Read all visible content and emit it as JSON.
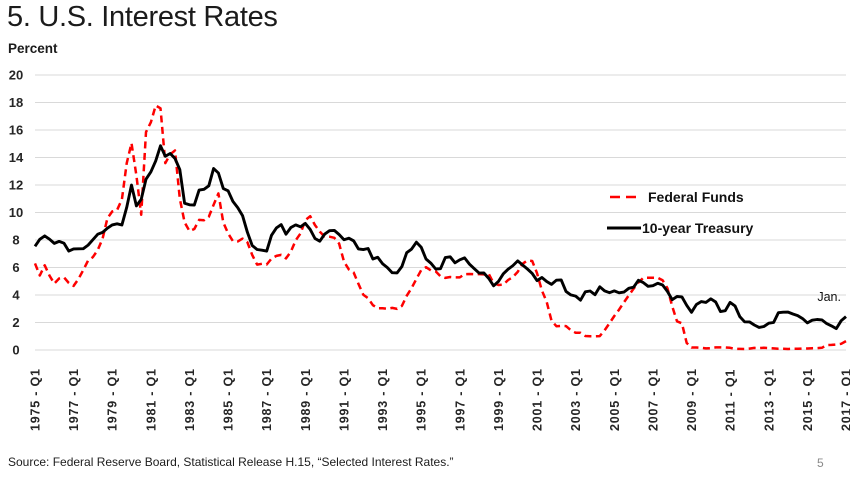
{
  "title": "5. U.S. Interest Rates",
  "y_axis_units": "Percent",
  "source": "Source: Federal Reserve Board, Statistical Release H.15, “Selected Interest Rates.”",
  "page_number": "5",
  "colors": {
    "federal_funds": "#fe0000",
    "treasury": "#000000",
    "gridline": "#d9d9d9",
    "text": "#262626",
    "page_number": "#8a8a8a"
  },
  "chart_data": {
    "type": "line",
    "title": "5. U.S. Interest Rates",
    "ylabel": "Percent",
    "xlabel": "",
    "ylim": [
      0,
      20
    ],
    "ytick_step": 2,
    "grid": "horizontal",
    "legend_position": "middle-right",
    "x_frequency": "quarterly",
    "x_start": "1975 - Q1",
    "x_end": "2017 - Q1",
    "x_tick_every": 8,
    "x_tick_labels": [
      "1975 - Q1",
      "1977 - Q1",
      "1979 - Q1",
      "1981 - Q1",
      "1983 - Q1",
      "1985 - Q1",
      "1987 - Q1",
      "1989 - Q1",
      "1991 - Q1",
      "1993 - Q1",
      "1995 - Q1",
      "1997 - Q1",
      "1999 - Q1",
      "2001 - Q1",
      "2003 - Q1",
      "2005 - Q1",
      "2007 - Q1",
      "2009 - Q1",
      "2011 - Q1",
      "2013 - Q1",
      "2015 - Q1",
      "2017 - Q1"
    ],
    "annotation": {
      "text": "Jan.",
      "x": "2017 - Q1"
    },
    "series": [
      {
        "name": "Federal Funds",
        "color": "#fe0000",
        "dash": true,
        "values": [
          6.3,
          5.42,
          6.16,
          5.41,
          4.83,
          5.2,
          5.28,
          4.87,
          4.66,
          5.16,
          5.82,
          6.51,
          6.76,
          7.28,
          8.1,
          9.58,
          10.07,
          10.18,
          10.95,
          13.58,
          15.05,
          12.69,
          9.84,
          15.85,
          16.57,
          17.78,
          17.58,
          13.59,
          14.23,
          14.51,
          11.01,
          9.29,
          8.65,
          8.8,
          9.46,
          9.43,
          9.69,
          10.56,
          11.39,
          9.27,
          8.48,
          7.92,
          7.9,
          8.1,
          7.83,
          6.92,
          6.21,
          6.27,
          6.22,
          6.65,
          6.84,
          6.92,
          6.66,
          7.16,
          7.98,
          8.47,
          9.44,
          9.73,
          9.08,
          8.61,
          8.25,
          8.24,
          8.16,
          7.74,
          6.43,
          5.86,
          5.64,
          4.82,
          4.02,
          3.77,
          3.26,
          3.04,
          3.04,
          3.0,
          3.06,
          2.99,
          3.21,
          3.94,
          4.49,
          5.17,
          5.81,
          6.02,
          5.8,
          5.72,
          5.36,
          5.24,
          5.31,
          5.28,
          5.28,
          5.52,
          5.53,
          5.51,
          5.52,
          5.5,
          5.53,
          4.86,
          4.73,
          4.75,
          5.09,
          5.31,
          5.68,
          6.27,
          6.52,
          6.47,
          5.59,
          4.33,
          3.5,
          2.13,
          1.73,
          1.75,
          1.74,
          1.44,
          1.25,
          1.25,
          1.02,
          1.0,
          1.0,
          1.01,
          1.43,
          1.95,
          2.47,
          2.94,
          3.46,
          3.98,
          4.46,
          4.91,
          5.25,
          5.25,
          5.26,
          5.25,
          5.07,
          4.5,
          3.18,
          2.09,
          1.94,
          0.51,
          0.18,
          0.18,
          0.16,
          0.12,
          0.13,
          0.19,
          0.19,
          0.19,
          0.16,
          0.09,
          0.08,
          0.07,
          0.1,
          0.15,
          0.14,
          0.16,
          0.14,
          0.12,
          0.09,
          0.09,
          0.07,
          0.09,
          0.09,
          0.1,
          0.11,
          0.13,
          0.14,
          0.16,
          0.36,
          0.37,
          0.4,
          0.45,
          0.65
        ]
      },
      {
        "name": "10-year Treasury",
        "color": "#000000",
        "dash": false,
        "values": [
          7.54,
          8.05,
          8.3,
          8.06,
          7.75,
          7.9,
          7.77,
          7.19,
          7.35,
          7.36,
          7.37,
          7.63,
          8.02,
          8.42,
          8.55,
          8.86,
          9.1,
          9.18,
          9.09,
          10.37,
          11.99,
          10.48,
          10.95,
          12.42,
          12.96,
          13.75,
          14.85,
          14.09,
          14.29,
          13.93,
          13.12,
          10.67,
          10.56,
          10.54,
          11.63,
          11.69,
          11.94,
          13.2,
          12.87,
          11.74,
          11.58,
          10.81,
          10.34,
          9.76,
          8.56,
          7.6,
          7.31,
          7.26,
          7.19,
          8.34,
          8.88,
          9.12,
          8.42,
          8.91,
          9.1,
          8.96,
          9.21,
          8.77,
          8.11,
          7.91,
          8.42,
          8.68,
          8.7,
          8.4,
          8.02,
          8.13,
          7.94,
          7.35,
          7.3,
          7.38,
          6.62,
          6.74,
          6.28,
          5.99,
          5.62,
          5.61,
          6.07,
          7.08,
          7.33,
          7.84,
          7.48,
          6.62,
          6.32,
          5.89,
          5.91,
          6.72,
          6.78,
          6.34,
          6.56,
          6.7,
          6.24,
          5.91,
          5.59,
          5.6,
          5.2,
          4.67,
          4.98,
          5.54,
          5.88,
          6.14,
          6.48,
          6.18,
          5.89,
          5.57,
          5.05,
          5.27,
          4.98,
          4.77,
          5.08,
          5.1,
          4.26,
          4.01,
          3.92,
          3.62,
          4.23,
          4.29,
          4.02,
          4.6,
          4.3,
          4.17,
          4.3,
          4.16,
          4.21,
          4.49,
          4.57,
          5.07,
          4.9,
          4.63,
          4.68,
          4.85,
          4.73,
          4.26,
          3.66,
          3.89,
          3.86,
          3.25,
          2.74,
          3.31,
          3.52,
          3.46,
          3.72,
          3.49,
          2.79,
          2.86,
          3.46,
          3.21,
          2.43,
          2.05,
          2.04,
          1.82,
          1.64,
          1.71,
          1.95,
          2.0,
          2.71,
          2.75,
          2.76,
          2.62,
          2.5,
          2.28,
          1.97,
          2.17,
          2.22,
          2.19,
          1.92,
          1.75,
          1.56,
          2.13,
          2.43
        ]
      }
    ]
  }
}
